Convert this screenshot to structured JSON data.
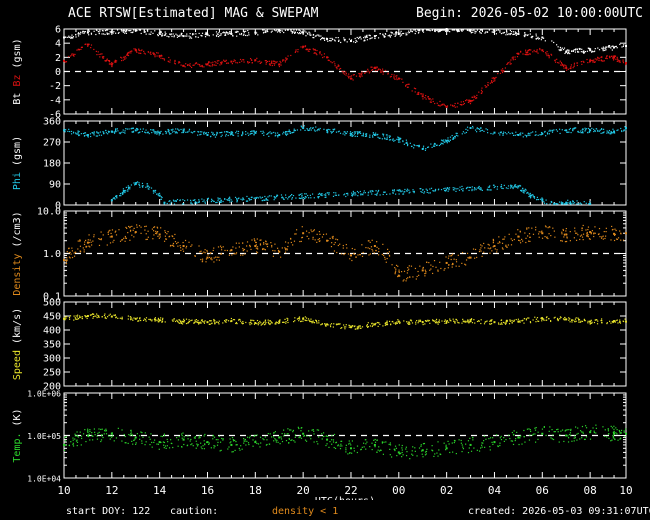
{
  "header": {
    "title": "ACE RTSW[Estimated] MAG & SWEPAM",
    "begin": "Begin: 2026-05-02 10:00:00UTC"
  },
  "footer": {
    "start_doy": "start DOY: 122",
    "caution": "caution:",
    "caution_note": "density < 1",
    "created": "created: 2026-05-03 09:31:07UTC"
  },
  "colors": {
    "background": "#000000",
    "axes": "#ffffff",
    "bt": "#ffffff",
    "bz": "#dd1111",
    "phi": "#22c8e6",
    "density": "#e08a1c",
    "speed": "#e6e22a",
    "temp": "#2bd52b",
    "caution": "#e08a1c"
  },
  "chart_data": [
    {
      "type": "scatter",
      "panel": "bt-bz",
      "ylabel_parts": [
        "Bt",
        "Bz",
        "(gsm)"
      ],
      "ylim": [
        -6,
        6
      ],
      "yticks": [
        6,
        4,
        2,
        0,
        -2,
        -4,
        -6
      ],
      "ytick_labels": [
        "6",
        "4",
        "2",
        "0",
        "-2",
        "-4",
        "-6"
      ],
      "reference_line": 0,
      "series": [
        {
          "name": "Bt",
          "color": "#ffffff",
          "x": [
            0,
            1,
            2,
            3,
            4,
            5,
            6,
            7,
            8,
            9,
            10,
            11,
            12,
            13,
            14,
            15,
            16,
            17,
            18,
            19,
            20,
            21,
            22,
            23,
            23.5
          ],
          "y": [
            4.8,
            5.5,
            5.6,
            5.8,
            5.4,
            5.0,
            5.2,
            5.3,
            5.5,
            5.8,
            5.5,
            4.6,
            4.3,
            5.0,
            5.3,
            5.9,
            6.0,
            5.8,
            5.7,
            5.3,
            4.8,
            2.8,
            3.0,
            3.4,
            3.6
          ]
        },
        {
          "name": "Bz",
          "color": "#dd1111",
          "x": [
            0,
            1,
            2,
            3,
            4,
            5,
            6,
            7,
            8,
            9,
            10,
            11,
            12,
            13,
            14,
            15,
            16,
            17,
            18,
            19,
            20,
            21,
            22,
            23,
            23.5
          ],
          "y": [
            1.5,
            3.8,
            1.0,
            3.0,
            2.2,
            0.8,
            1.0,
            1.4,
            1.6,
            1.0,
            3.5,
            2.0,
            -1.0,
            0.5,
            -1.0,
            -3.5,
            -5.0,
            -4.2,
            -1.0,
            2.5,
            3.0,
            0.5,
            1.5,
            2.0,
            1.2
          ]
        }
      ]
    },
    {
      "type": "scatter",
      "panel": "phi",
      "ylabel_parts": [
        "Phi",
        "(gsm)"
      ],
      "ylim": [
        0,
        360
      ],
      "yticks": [
        360,
        270,
        180,
        90,
        0
      ],
      "ytick_labels": [
        "360",
        "270",
        "180",
        "90",
        "0"
      ],
      "series": [
        {
          "name": "Phi",
          "color": "#22c8e6",
          "x": [
            0,
            1,
            2,
            3,
            4,
            5,
            6,
            7,
            8,
            9,
            10,
            11,
            12,
            13,
            14,
            15,
            16,
            17,
            18,
            19,
            20,
            21,
            22,
            23,
            23.5
          ],
          "y": [
            320,
            300,
            315,
            320,
            310,
            318,
            300,
            305,
            310,
            300,
            330,
            320,
            305,
            300,
            280,
            240,
            275,
            330,
            310,
            300,
            305,
            320,
            320,
            315,
            330
          ]
        },
        {
          "name": "Phi",
          "color": "#22c8e6",
          "x": [
            2,
            2.5,
            3,
            3.5,
            4,
            4.2,
            19,
            19.5,
            20,
            20.5,
            21,
            22
          ],
          "y": [
            20,
            60,
            90,
            80,
            40,
            10,
            80,
            40,
            20,
            5,
            10,
            5
          ]
        }
      ]
    },
    {
      "type": "scatter",
      "panel": "density",
      "ylabel_parts": [
        "Density",
        "(/cm3)"
      ],
      "yscale": "log",
      "ylim": [
        0.1,
        10
      ],
      "yticks": [
        10,
        1,
        0.1
      ],
      "ytick_labels": [
        "10.0",
        "1.0",
        "0.1"
      ],
      "reference_line": 1,
      "series": [
        {
          "name": "Density",
          "color": "#e08a1c",
          "x": [
            0,
            1,
            2,
            3,
            4,
            5,
            6,
            7,
            8,
            9,
            10,
            11,
            12,
            13,
            14,
            15,
            16,
            17,
            18,
            19,
            20,
            21,
            22,
            23,
            23.5
          ],
          "y": [
            0.7,
            1.8,
            2.5,
            3.2,
            2.8,
            1.5,
            0.8,
            1.2,
            1.5,
            1.1,
            3.0,
            2.0,
            0.9,
            1.5,
            0.3,
            0.4,
            0.6,
            0.8,
            1.5,
            2.5,
            3.0,
            2.8,
            3.2,
            2.9,
            3.0
          ]
        }
      ]
    },
    {
      "type": "scatter",
      "panel": "speed",
      "ylabel_parts": [
        "Speed",
        "(km/s)"
      ],
      "ylim": [
        200,
        500
      ],
      "yticks": [
        500,
        450,
        400,
        350,
        300,
        250,
        200
      ],
      "ytick_labels": [
        "500",
        "450",
        "400",
        "350",
        "300",
        "250",
        "200"
      ],
      "series": [
        {
          "name": "Speed",
          "color": "#e6e22a",
          "x": [
            0,
            1,
            2,
            3,
            4,
            5,
            6,
            7,
            8,
            9,
            10,
            11,
            12,
            13,
            14,
            15,
            16,
            17,
            18,
            19,
            20,
            21,
            22,
            23,
            23.5
          ],
          "y": [
            440,
            450,
            448,
            440,
            435,
            430,
            428,
            432,
            425,
            430,
            440,
            420,
            410,
            420,
            430,
            428,
            430,
            432,
            428,
            430,
            440,
            438,
            430,
            432,
            430
          ]
        }
      ]
    },
    {
      "type": "scatter",
      "panel": "temp",
      "ylabel_parts": [
        "Temp.",
        "(K)"
      ],
      "yscale": "log",
      "ylim": [
        10000,
        1000000
      ],
      "yticks": [
        1000000,
        100000,
        10000
      ],
      "ytick_labels": [
        "1.0E+06",
        "1.0E+05",
        "1.0E+04"
      ],
      "reference_line": 100000,
      "xlabel": "UTC(hours)",
      "xticks": [
        0,
        2,
        4,
        6,
        8,
        10,
        12,
        14,
        16,
        18,
        20,
        22,
        23.5
      ],
      "xlim": [
        0,
        23.5
      ],
      "xtick_labels": [
        "10",
        "12",
        "14",
        "16",
        "18",
        "20",
        "22",
        "00",
        "02",
        "04",
        "06",
        "08",
        "10"
      ],
      "series": [
        {
          "name": "Temp",
          "color": "#2bd52b",
          "x": [
            0,
            1,
            2,
            3,
            4,
            5,
            6,
            7,
            8,
            9,
            10,
            11,
            12,
            13,
            14,
            15,
            16,
            17,
            18,
            19,
            20,
            21,
            22,
            23,
            23.5
          ],
          "y": [
            60000,
            100000,
            110000,
            90000,
            70000,
            80000,
            70000,
            60000,
            70000,
            90000,
            110000,
            80000,
            50000,
            60000,
            40000,
            45000,
            50000,
            60000,
            70000,
            90000,
            110000,
            100000,
            120000,
            110000,
            110000
          ]
        }
      ]
    }
  ]
}
